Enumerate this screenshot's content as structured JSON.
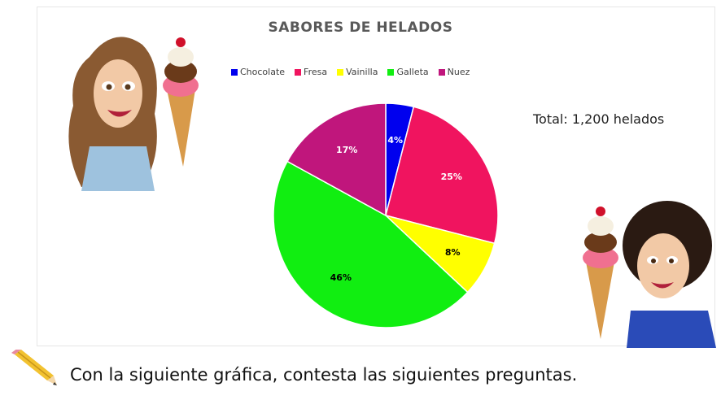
{
  "chart_data": {
    "type": "pie",
    "title": "SABORES DE HELADOS",
    "categories": [
      "Chocolate",
      "Fresa",
      "Vainilla",
      "Galleta",
      "Nuez"
    ],
    "values": [
      4,
      25,
      8,
      46,
      17
    ],
    "labels": [
      "4%",
      "25%",
      "8%",
      "46%",
      "17%"
    ],
    "colors": [
      "#0000ee",
      "#f0145f",
      "#ffff00",
      "#11ee11",
      "#c0167c"
    ],
    "label_colors": [
      "#ffffff",
      "#ffffff",
      "#000000",
      "#000000",
      "#ffffff"
    ],
    "legend_position": "top"
  },
  "annotations": {
    "total": "Total: 1,200 helados"
  },
  "caption": "Con la siguiente gráfica, contesta las siguientes preguntas.",
  "icons": {
    "pencil": "pencil-icon"
  }
}
